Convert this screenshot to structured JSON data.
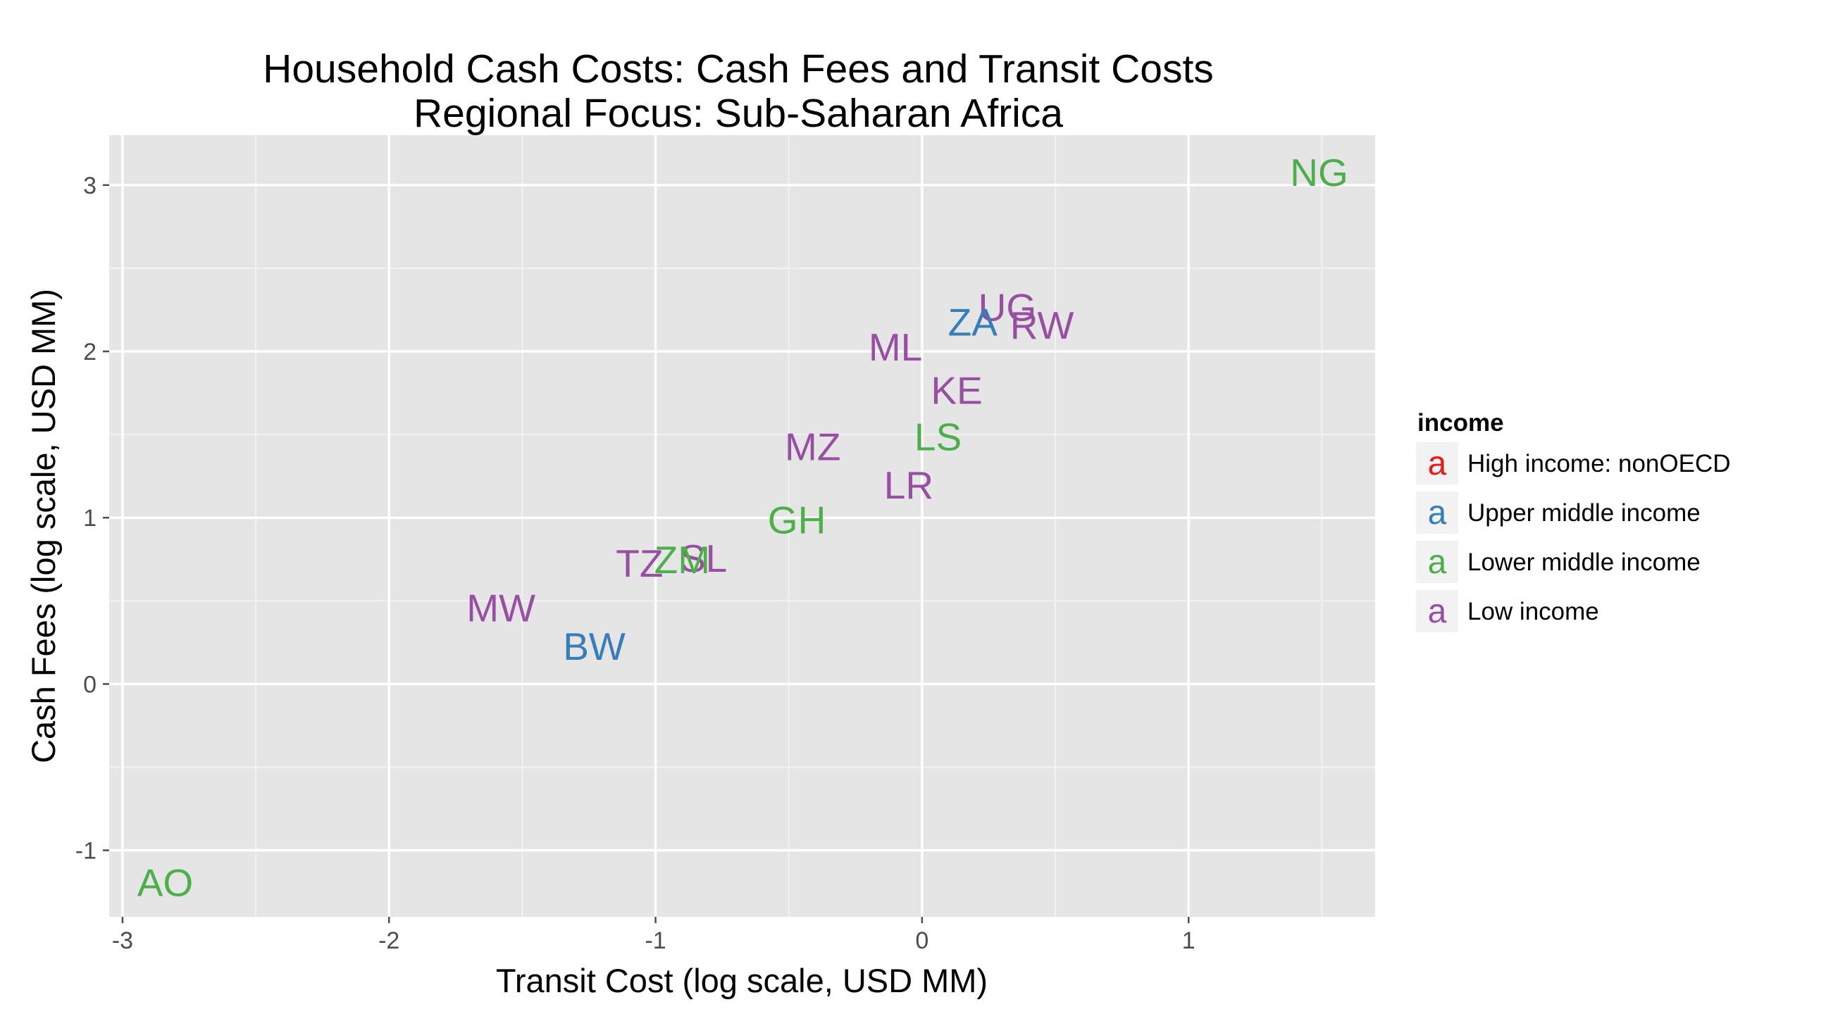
{
  "chart_data": {
    "type": "scatter",
    "title": "Household Cash Costs: Cash Fees and Transit Costs",
    "subtitle": "Regional Focus: Sub-Saharan Africa",
    "xlabel": "Transit Cost (log scale, USD MM)",
    "ylabel": "Cash Fees (log scale, USD MM)",
    "xlim": [
      -3.05,
      1.7
    ],
    "ylim": [
      -1.4,
      3.3
    ],
    "x_ticks": [
      -3,
      -2,
      -1,
      0,
      1
    ],
    "x_tick_labels": [
      "-3",
      "-2",
      "-1",
      "0",
      "1"
    ],
    "y_ticks": [
      -1,
      0,
      1,
      2,
      3
    ],
    "y_tick_labels": [
      "-1",
      "0",
      "1",
      "2",
      "3"
    ],
    "grid": true,
    "legend": {
      "title": "income",
      "placement": "right",
      "key_glyph": "a",
      "entries": [
        {
          "label": "High income: nonOECD",
          "color": "#e41a1c"
        },
        {
          "label": "Upper middle income",
          "color": "#377eb8"
        },
        {
          "label": "Lower middle income",
          "color": "#4daf4a"
        },
        {
          "label": "Low income",
          "color": "#984ea3"
        }
      ]
    },
    "points": [
      {
        "label": "NG",
        "x": 1.49,
        "y": 3.08,
        "income": 2
      },
      {
        "label": "UG",
        "x": 0.32,
        "y": 2.27,
        "income": 3
      },
      {
        "label": "ZA",
        "x": 0.19,
        "y": 2.18,
        "income": 1
      },
      {
        "label": "RW",
        "x": 0.45,
        "y": 2.16,
        "income": 3
      },
      {
        "label": "ML",
        "x": -0.1,
        "y": 2.03,
        "income": 3
      },
      {
        "label": "KE",
        "x": 0.13,
        "y": 1.77,
        "income": 3
      },
      {
        "label": "LS",
        "x": 0.06,
        "y": 1.49,
        "income": 2
      },
      {
        "label": "MZ",
        "x": -0.41,
        "y": 1.43,
        "income": 3
      },
      {
        "label": "LR",
        "x": -0.05,
        "y": 1.2,
        "income": 3
      },
      {
        "label": "GH",
        "x": -0.47,
        "y": 0.99,
        "income": 2
      },
      {
        "label": "SL",
        "x": -0.82,
        "y": 0.76,
        "income": 3
      },
      {
        "label": "ZM",
        "x": -0.9,
        "y": 0.75,
        "income": 2
      },
      {
        "label": "TZ",
        "x": -1.06,
        "y": 0.73,
        "income": 3
      },
      {
        "label": "MW",
        "x": -1.58,
        "y": 0.46,
        "income": 3
      },
      {
        "label": "BW",
        "x": -1.23,
        "y": 0.23,
        "income": 1
      },
      {
        "label": "AO",
        "x": -2.84,
        "y": -1.19,
        "income": 2
      }
    ]
  }
}
